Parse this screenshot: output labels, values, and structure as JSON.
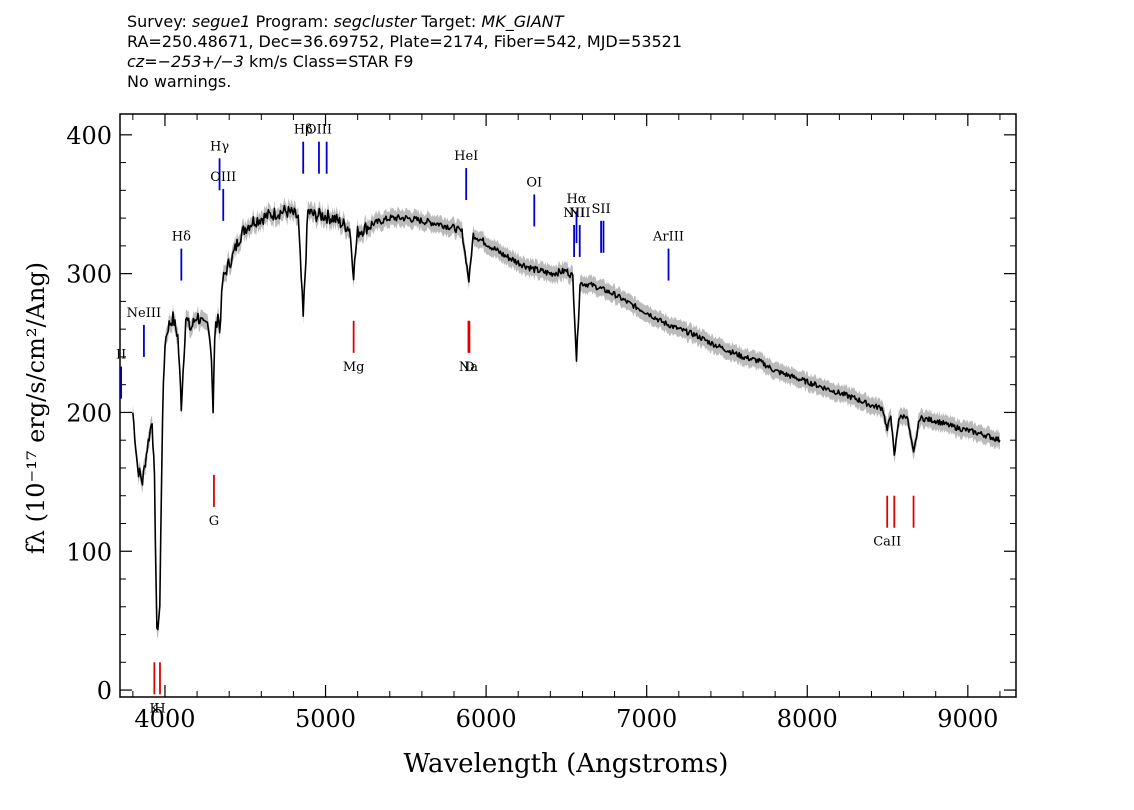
{
  "header": {
    "survey_label": "Survey:",
    "survey": "segue1",
    "program_label": "Program:",
    "program": "segcluster",
    "target_label": "Target:",
    "target": "MK_GIANT",
    "line2": "RA=250.48671, Dec=36.69752, Plate=2174, Fiber=542, MJD=53521",
    "cz_label": "cz=",
    "cz_value": "−253+/−3",
    "cz_units": "km/s Class=STAR F9",
    "line4": "No warnings."
  },
  "chart_data": {
    "type": "line",
    "xlabel": "Wavelength (Angstroms)",
    "ylabel": "fλ (10⁻¹⁷ erg/s/cm²/Ang)",
    "xlim": [
      3720,
      9300
    ],
    "ylim": [
      -5,
      415
    ],
    "x_ticks": [
      4000,
      5000,
      6000,
      7000,
      8000,
      9000
    ],
    "y_ticks": [
      0,
      100,
      200,
      300,
      400
    ],
    "grid": false,
    "colors": {
      "spectrum": "#000000",
      "error_band": "#bbbbbb",
      "emission_marker": "#0000cc",
      "absorption_marker": "#dd0000"
    },
    "series": [
      {
        "x": [
          3800,
          3830,
          3860,
          3890,
          3920,
          3935,
          3950,
          3968,
          3985,
          4000,
          4020,
          4050,
          4080,
          4102,
          4130,
          4160,
          4200,
          4240,
          4270,
          4290,
          4300,
          4310,
          4330,
          4340,
          4360,
          4390,
          4420,
          4460,
          4500,
          4550,
          4600,
          4650,
          4700,
          4750,
          4800,
          4830,
          4861,
          4890,
          4930,
          4980,
          5050,
          5100,
          5150,
          5175,
          5200,
          5250,
          5300,
          5400,
          5500,
          5600,
          5700,
          5800,
          5850,
          5893,
          5920,
          6000,
          6100,
          6200,
          6300,
          6400,
          6500,
          6540,
          6563,
          6585,
          6650,
          6700,
          6800,
          6900,
          7000,
          7100,
          7200,
          7300,
          7400,
          7500,
          7600,
          7700,
          7800,
          7900,
          8000,
          8100,
          8200,
          8300,
          8400,
          8470,
          8498,
          8520,
          8542,
          8570,
          8620,
          8662,
          8700,
          8800,
          8900,
          9000,
          9100,
          9200
        ],
        "y": [
          200,
          160,
          150,
          175,
          195,
          150,
          40,
          60,
          200,
          250,
          262,
          268,
          255,
          205,
          268,
          260,
          270,
          262,
          265,
          240,
          198,
          255,
          272,
          258,
          295,
          305,
          312,
          325,
          333,
          338,
          340,
          342,
          344,
          345,
          343,
          340,
          268,
          345,
          342,
          342,
          340,
          336,
          333,
          300,
          330,
          333,
          336,
          340,
          340,
          338,
          336,
          333,
          330,
          295,
          328,
          322,
          314,
          308,
          303,
          300,
          302,
          298,
          238,
          293,
          292,
          290,
          285,
          278,
          272,
          265,
          260,
          256,
          250,
          245,
          240,
          237,
          230,
          226,
          222,
          218,
          214,
          210,
          205,
          203,
          187,
          199,
          168,
          196,
          198,
          170,
          196,
          194,
          190,
          187,
          184,
          180
        ]
      }
    ],
    "emission_lines": [
      {
        "label": "II",
        "wave": 3727,
        "y": 210
      },
      {
        "label": "NeIII",
        "wave": 3869,
        "y": 240
      },
      {
        "label": "Hδ",
        "wave": 4102,
        "y": 295
      },
      {
        "label": "Hγ",
        "wave": 4340,
        "y": 360
      },
      {
        "label": "OIII",
        "wave": 4363,
        "y": 338
      },
      {
        "label": "Hβ",
        "wave": 4861,
        "y": 372
      },
      {
        "label": "OIII",
        "wave": 4959,
        "y": 372
      },
      {
        "label": "",
        "wave": 5007,
        "y": 372
      },
      {
        "label": "HeI",
        "wave": 5876,
        "y": 353
      },
      {
        "label": "OI",
        "wave": 6300,
        "y": 334
      },
      {
        "label": "NII",
        "wave": 6548,
        "y": 312
      },
      {
        "label": "Hα",
        "wave": 6563,
        "y": 322
      },
      {
        "label": "NII",
        "wave": 6583,
        "y": 312
      },
      {
        "label": "SII",
        "wave": 6716,
        "y": 315
      },
      {
        "label": "",
        "wave": 6731,
        "y": 315
      },
      {
        "label": "ArIII",
        "wave": 7136,
        "y": 295
      }
    ],
    "absorption_lines": [
      {
        "label": "K",
        "wave": 3934,
        "y": 20
      },
      {
        "label": "H",
        "wave": 3969,
        "y": 20
      },
      {
        "label": "G",
        "wave": 4305,
        "y": 155
      },
      {
        "label": "Mg",
        "wave": 5175,
        "y": 266
      },
      {
        "label": "Na",
        "wave": 5890,
        "y": 266
      },
      {
        "label": "D",
        "wave": 5896,
        "y": 266
      },
      {
        "label": "CaII",
        "wave": 8498,
        "y": 140
      },
      {
        "label": "",
        "wave": 8542,
        "y": 140
      },
      {
        "label": "",
        "wave": 8662,
        "y": 140
      }
    ]
  }
}
